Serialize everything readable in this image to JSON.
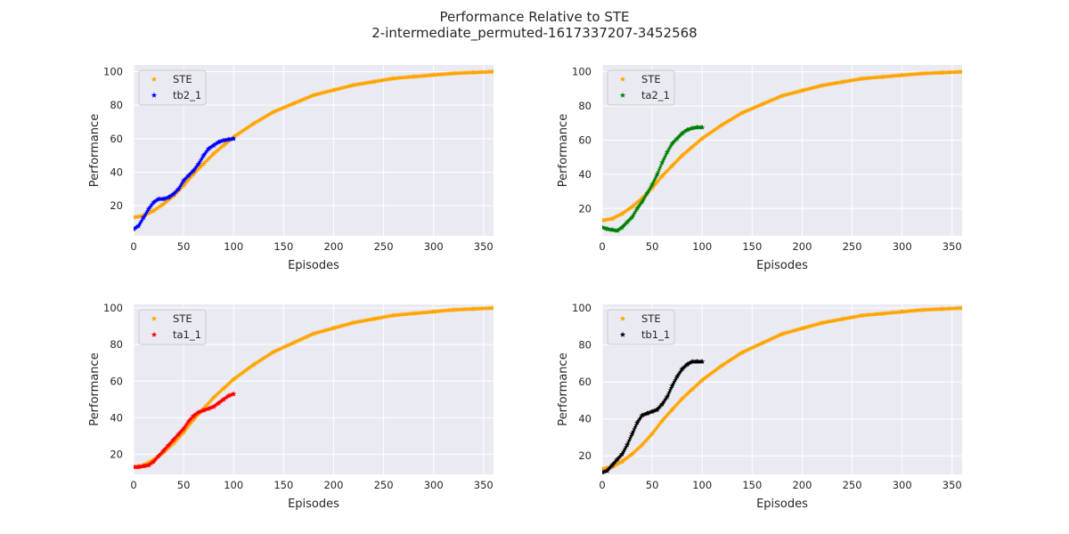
{
  "figure": {
    "title": "Performance Relative to STE",
    "subtitle": "2-intermediate_permuted-1617337207-3452568"
  },
  "chart_data": [
    {
      "type": "scatter",
      "xlabel": "Episodes",
      "ylabel": "Performance",
      "xlim": [
        0,
        360
      ],
      "ylim": [
        2,
        104
      ],
      "xticks": [
        0,
        50,
        100,
        150,
        200,
        250,
        300,
        350
      ],
      "yticks": [
        20,
        40,
        60,
        80,
        100
      ],
      "grid": true,
      "legend_position": "top-left",
      "series": [
        {
          "name": "STE",
          "color": "#ffa500",
          "marker": "star",
          "x": [
            0,
            10,
            20,
            30,
            40,
            50,
            60,
            70,
            80,
            90,
            100,
            120,
            140,
            160,
            180,
            200,
            220,
            240,
            260,
            280,
            300,
            320,
            340,
            360
          ],
          "y": [
            13,
            14,
            17,
            21,
            26,
            32,
            39,
            45,
            51,
            56,
            61,
            69,
            76,
            81,
            86,
            89,
            92,
            94,
            96,
            97,
            98,
            99,
            99.5,
            100
          ]
        },
        {
          "name": "tb2_1",
          "color": "#0000ff",
          "marker": "star",
          "x": [
            0,
            5,
            10,
            15,
            20,
            25,
            30,
            35,
            40,
            45,
            50,
            55,
            60,
            65,
            70,
            75,
            80,
            85,
            90,
            95,
            100
          ],
          "y": [
            6,
            8,
            13,
            18,
            22,
            24,
            24,
            25,
            27,
            30,
            35,
            38,
            41,
            45,
            50,
            54,
            56,
            58,
            59,
            59.5,
            60
          ]
        }
      ]
    },
    {
      "type": "scatter",
      "xlabel": "Episodes",
      "ylabel": "Performance",
      "xlim": [
        0,
        360
      ],
      "ylim": [
        4,
        104
      ],
      "xticks": [
        0,
        50,
        100,
        150,
        200,
        250,
        300,
        350
      ],
      "yticks": [
        20,
        40,
        60,
        80,
        100
      ],
      "grid": true,
      "legend_position": "top-left",
      "series": [
        {
          "name": "STE",
          "color": "#ffa500",
          "marker": "star",
          "x": [
            0,
            10,
            20,
            30,
            40,
            50,
            60,
            70,
            80,
            90,
            100,
            120,
            140,
            160,
            180,
            200,
            220,
            240,
            260,
            280,
            300,
            320,
            340,
            360
          ],
          "y": [
            13,
            14,
            17,
            21,
            26,
            32,
            39,
            45,
            51,
            56,
            61,
            69,
            76,
            81,
            86,
            89,
            92,
            94,
            96,
            97,
            98,
            99,
            99.5,
            100
          ]
        },
        {
          "name": "ta2_1",
          "color": "#008000",
          "marker": "star",
          "x": [
            0,
            5,
            10,
            15,
            20,
            25,
            30,
            35,
            40,
            45,
            50,
            55,
            60,
            65,
            70,
            75,
            80,
            85,
            90,
            95,
            100
          ],
          "y": [
            9,
            8,
            7.5,
            7,
            9,
            12,
            15,
            20,
            24,
            29,
            34,
            40,
            47,
            53,
            58,
            61,
            64,
            66,
            67,
            67.5,
            67.5
          ]
        }
      ]
    },
    {
      "type": "scatter",
      "xlabel": "Episodes",
      "ylabel": "Performance",
      "xlim": [
        0,
        360
      ],
      "ylim": [
        9,
        102
      ],
      "xticks": [
        0,
        50,
        100,
        150,
        200,
        250,
        300,
        350
      ],
      "yticks": [
        20,
        40,
        60,
        80,
        100
      ],
      "grid": true,
      "legend_position": "top-left",
      "series": [
        {
          "name": "STE",
          "color": "#ffa500",
          "marker": "star",
          "x": [
            0,
            10,
            20,
            30,
            40,
            50,
            60,
            70,
            80,
            90,
            100,
            120,
            140,
            160,
            180,
            200,
            220,
            240,
            260,
            280,
            300,
            320,
            340,
            360
          ],
          "y": [
            13,
            14,
            17,
            21,
            26,
            32,
            39,
            45,
            51,
            56,
            61,
            69,
            76,
            81,
            86,
            89,
            92,
            94,
            96,
            97,
            98,
            99,
            99.5,
            100
          ]
        },
        {
          "name": "ta1_1",
          "color": "#ff0000",
          "marker": "star",
          "x": [
            0,
            5,
            10,
            15,
            20,
            25,
            30,
            35,
            40,
            45,
            50,
            55,
            60,
            65,
            70,
            75,
            80,
            85,
            90,
            95,
            100
          ],
          "y": [
            13,
            13,
            13.5,
            14,
            16,
            19,
            22,
            25,
            28,
            31,
            34,
            38,
            41,
            43,
            44,
            45,
            46,
            48,
            50,
            52,
            53
          ]
        }
      ]
    },
    {
      "type": "scatter",
      "xlabel": "Episodes",
      "ylabel": "Performance",
      "xlim": [
        0,
        360
      ],
      "ylim": [
        10,
        102
      ],
      "xticks": [
        0,
        50,
        100,
        150,
        200,
        250,
        300,
        350
      ],
      "yticks": [
        20,
        40,
        60,
        80,
        100
      ],
      "grid": true,
      "legend_position": "top-left",
      "series": [
        {
          "name": "STE",
          "color": "#ffa500",
          "marker": "star",
          "x": [
            0,
            10,
            20,
            30,
            40,
            50,
            60,
            70,
            80,
            90,
            100,
            120,
            140,
            160,
            180,
            200,
            220,
            240,
            260,
            280,
            300,
            320,
            340,
            360
          ],
          "y": [
            13,
            14,
            17,
            21,
            26,
            32,
            39,
            45,
            51,
            56,
            61,
            69,
            76,
            81,
            86,
            89,
            92,
            94,
            96,
            97,
            98,
            99,
            99.5,
            100
          ]
        },
        {
          "name": "tb1_1",
          "color": "#000000",
          "marker": "star",
          "x": [
            0,
            5,
            10,
            15,
            20,
            25,
            30,
            35,
            40,
            45,
            50,
            55,
            60,
            65,
            70,
            75,
            80,
            85,
            90,
            95,
            100
          ],
          "y": [
            11,
            12,
            15,
            18,
            21,
            26,
            32,
            38,
            42,
            43,
            44,
            45,
            48,
            52,
            58,
            63,
            67,
            69.5,
            71,
            71,
            71
          ]
        }
      ]
    }
  ]
}
